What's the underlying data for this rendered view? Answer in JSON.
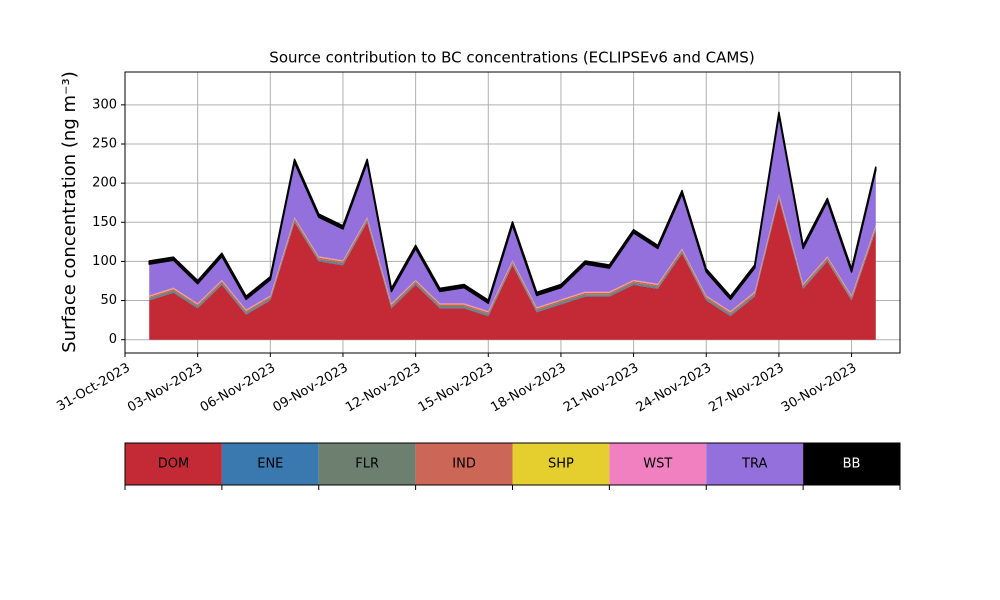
{
  "chart_data": {
    "type": "stacked_area",
    "title": "Source contribution to BC concentrations (ECLIPSEv6 and CAMS)",
    "y_label": "Surface concentration (ng m⁻³)",
    "x": [
      "01-Nov-2023",
      "02-Nov-2023",
      "03-Nov-2023",
      "04-Nov-2023",
      "05-Nov-2023",
      "06-Nov-2023",
      "07-Nov-2023",
      "08-Nov-2023",
      "09-Nov-2023",
      "10-Nov-2023",
      "11-Nov-2023",
      "12-Nov-2023",
      "13-Nov-2023",
      "14-Nov-2023",
      "15-Nov-2023",
      "16-Nov-2023",
      "17-Nov-2023",
      "18-Nov-2023",
      "19-Nov-2023",
      "20-Nov-2023",
      "21-Nov-2023",
      "22-Nov-2023",
      "23-Nov-2023",
      "24-Nov-2023",
      "25-Nov-2023",
      "26-Nov-2023",
      "27-Nov-2023",
      "28-Nov-2023",
      "29-Nov-2023",
      "30-Nov-2023",
      "01-Dec-2023"
    ],
    "series": [
      {
        "name": "DOM",
        "color": "#c42a35",
        "values": [
          50,
          60,
          40,
          70,
          32,
          50,
          150,
          100,
          95,
          150,
          40,
          70,
          40,
          40,
          30,
          95,
          35,
          45,
          55,
          55,
          70,
          65,
          110,
          50,
          30,
          55,
          180,
          65,
          100,
          50,
          140
        ]
      },
      {
        "name": "ENE",
        "color": "#3a78b0",
        "values": [
          1,
          1,
          1,
          1,
          1,
          1,
          1,
          1,
          1,
          1,
          1,
          1,
          1,
          1,
          1,
          1,
          1,
          1,
          1,
          1,
          1,
          1,
          1,
          1,
          1,
          1,
          1,
          1,
          1,
          1,
          1
        ]
      },
      {
        "name": "FLR",
        "color": "#6d8070",
        "values": [
          2,
          2,
          2,
          2,
          2,
          2,
          2,
          2,
          2,
          2,
          2,
          2,
          2,
          2,
          2,
          2,
          2,
          2,
          2,
          2,
          2,
          2,
          2,
          2,
          2,
          2,
          2,
          2,
          2,
          2,
          2
        ]
      },
      {
        "name": "IND",
        "color": "#cc6656",
        "values": [
          2,
          2,
          2,
          2,
          2,
          2,
          2,
          2,
          2,
          2,
          2,
          2,
          2,
          2,
          2,
          2,
          2,
          2,
          2,
          2,
          2,
          2,
          2,
          2,
          2,
          2,
          2,
          2,
          2,
          2,
          2
        ]
      },
      {
        "name": "SHP",
        "color": "#e5cf2e",
        "values": [
          0.5,
          0.5,
          0.5,
          0.5,
          0.5,
          0.5,
          0.5,
          0.5,
          0.5,
          0.5,
          0.5,
          0.5,
          0.5,
          0.5,
          0.5,
          0.5,
          0.5,
          0.5,
          0.5,
          0.5,
          0.5,
          0.5,
          0.5,
          0.5,
          0.5,
          0.5,
          0.5,
          0.5,
          0.5,
          0.5,
          0.5
        ]
      },
      {
        "name": "WST",
        "color": "#f080bf",
        "values": [
          1,
          1,
          1,
          1,
          1,
          1,
          1,
          1,
          1,
          1,
          1,
          1,
          1,
          1,
          1,
          1,
          1,
          1,
          1,
          1,
          1,
          1,
          1,
          1,
          1,
          1,
          1,
          1,
          1,
          1,
          1
        ]
      },
      {
        "name": "TRA",
        "color": "#9370db",
        "values": [
          40,
          35,
          25,
          30,
          13,
          20,
          70,
          50,
          40,
          70,
          15,
          40,
          15,
          20,
          10,
          45,
          15,
          15,
          35,
          30,
          60,
          45,
          70,
          30,
          15,
          30,
          100,
          45,
          70,
          30,
          70
        ]
      },
      {
        "name": "BB",
        "color": "#000000",
        "values": [
          4,
          4,
          4,
          4,
          4,
          4,
          4,
          4,
          4,
          4,
          4,
          4,
          4,
          4,
          4,
          4,
          4,
          4,
          4,
          4,
          4,
          4,
          4,
          4,
          4,
          4,
          4,
          4,
          4,
          4,
          4
        ]
      }
    ],
    "xlim": [
      "31-Oct-2023",
      "02-Dec-2023"
    ],
    "xticks": [
      "31-Oct-2023",
      "03-Nov-2023",
      "06-Nov-2023",
      "09-Nov-2023",
      "12-Nov-2023",
      "15-Nov-2023",
      "18-Nov-2023",
      "21-Nov-2023",
      "24-Nov-2023",
      "27-Nov-2023",
      "30-Nov-2023"
    ],
    "ylim": [
      -17,
      342
    ],
    "yticks": [
      0,
      50,
      100,
      150,
      200,
      250,
      300
    ],
    "grid": true
  }
}
